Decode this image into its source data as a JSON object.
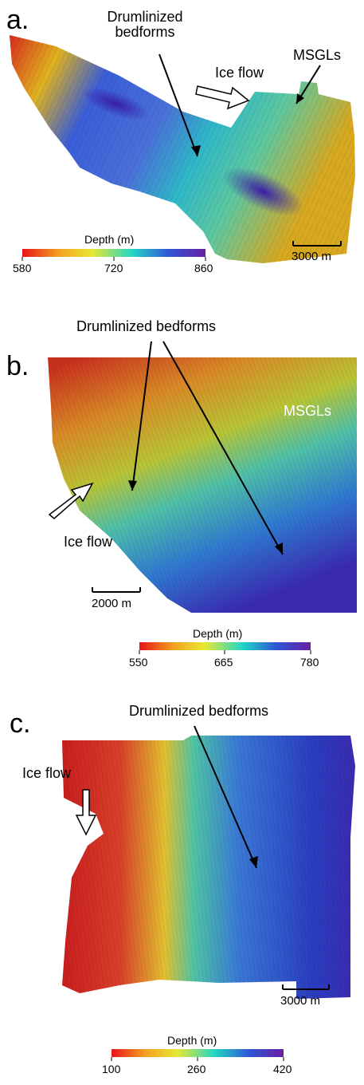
{
  "colors": {
    "ramp": [
      "#e8141a",
      "#f2a21f",
      "#e9e832",
      "#22d6c6",
      "#2f56d6",
      "#6a1fa3"
    ],
    "background": "#ffffff"
  },
  "panels": [
    {
      "letter": "a.",
      "labels": {
        "bedforms": "Drumlinized\nbedforms",
        "msgl": "MSGLs",
        "ice_flow": "Ice flow"
      },
      "scale_bar": "3000 m",
      "colorbar": {
        "title": "Depth (m)",
        "ticks": [
          "580",
          "720",
          "860"
        ]
      }
    },
    {
      "letter": "b.",
      "labels": {
        "bedforms": "Drumlinized bedforms",
        "msgl": "MSGLs",
        "ice_flow": "Ice flow"
      },
      "scale_bar": "2000 m",
      "colorbar": {
        "title": "Depth (m)",
        "ticks": [
          "550",
          "665",
          "780"
        ]
      }
    },
    {
      "letter": "c.",
      "labels": {
        "bedforms": "Drumlinized bedforms",
        "ice_flow": "Ice flow"
      },
      "scale_bar": "3000 m",
      "colorbar": {
        "title": "Depth (m)",
        "ticks": [
          "100",
          "260",
          "420"
        ]
      }
    }
  ]
}
